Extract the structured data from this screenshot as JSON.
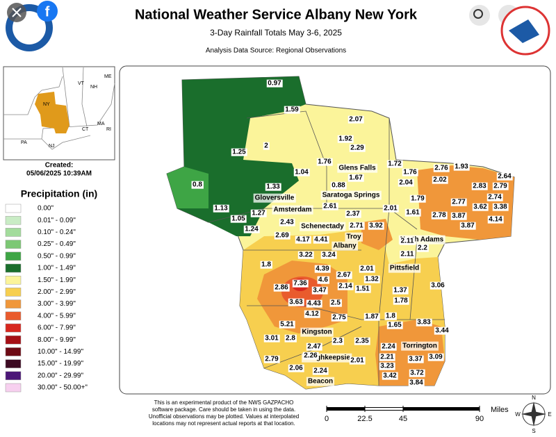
{
  "header": {
    "title": "National Weather Service Albany New York",
    "subtitle": "3-Day Rainfall Totals May 3-6, 2025",
    "source": "Analysis Data Source: Regional Observations"
  },
  "inset": {
    "labels": [
      "VT",
      "NH",
      "ME",
      "NY",
      "MA",
      "CT",
      "RI",
      "PA",
      "NJ"
    ]
  },
  "created": {
    "label": "Created:",
    "date": "05/06/2025 10:39AM"
  },
  "legend": {
    "title": "Precipitation (in)",
    "items": [
      {
        "label": "0.00\"",
        "color": "#ffffff"
      },
      {
        "label": "0.01\" - 0.09\"",
        "color": "#c9ecc5"
      },
      {
        "label": "0.10\" - 0.24\"",
        "color": "#a3dc9c"
      },
      {
        "label": "0.25\" - 0.49\"",
        "color": "#7cc874"
      },
      {
        "label": "0.50\" - 0.99\"",
        "color": "#3ea545"
      },
      {
        "label": "1.00\" - 1.49\"",
        "color": "#1a6e2c"
      },
      {
        "label": "1.50\" - 1.99\"",
        "color": "#fbf49a"
      },
      {
        "label": "2.00\" - 2.99\"",
        "color": "#f7cf4f"
      },
      {
        "label": "3.00\" - 3.99\"",
        "color": "#f0973a"
      },
      {
        "label": "4.00\" - 5.99\"",
        "color": "#e95b2d"
      },
      {
        "label": "6.00\" - 7.99\"",
        "color": "#d7261e"
      },
      {
        "label": "8.00\" - 9.99\"",
        "color": "#a50f15"
      },
      {
        "label": "10.00\" - 14.99\"",
        "color": "#6d0a14"
      },
      {
        "label": "15.00\" - 19.99\"",
        "color": "#3d0a22"
      },
      {
        "label": "20.00\" - 29.99\"",
        "color": "#4b1677"
      },
      {
        "label": "30.00\" - 50.00+\"",
        "color": "#f7d0ef"
      }
    ]
  },
  "cities": [
    "Glens Falls",
    "Saratoga Springs",
    "Gloversville",
    "Amsterdam",
    "Schenectady",
    "Troy",
    "Albany",
    "North Adams",
    "Pittsfield",
    "Kingston",
    "Poughkeepsie",
    "Torrington",
    "Beacon"
  ],
  "observations": [
    0.97,
    1.59,
    2.07,
    1.92,
    2.29,
    2,
    1.25,
    1.76,
    1.72,
    1.76,
    2.76,
    1.93,
    2.64,
    1.04,
    1.67,
    2.04,
    2.02,
    2.83,
    2.79,
    0.8,
    1.33,
    0.88,
    2.74,
    1.79,
    2.77,
    3.38,
    1.13,
    2.61,
    3.62,
    1.27,
    2.37,
    2.01,
    1.61,
    2.78,
    3.87,
    4.14,
    1.05,
    2.43,
    3.92,
    2.71,
    3.87,
    1.24,
    2.69,
    4.17,
    4.41,
    2.11,
    2.2,
    3.22,
    3.24,
    2.11,
    1.8,
    4.39,
    2.01,
    2.67,
    1.32,
    4.6,
    2.86,
    7.36,
    3.47,
    2.14,
    1.51,
    1.37,
    3.06,
    3.63,
    4.43,
    2.5,
    1.78,
    4.12,
    2.75,
    1.87,
    1.8,
    3.83,
    5.21,
    1.65,
    3.44,
    3.01,
    2.8,
    2.3,
    2.35,
    2.47,
    2.26,
    2.24,
    2.79,
    2.21,
    3.37,
    3.09,
    2.01,
    2.06,
    2.24,
    3.23,
    3.72,
    3.42,
    3.84
  ],
  "footer": [
    "This is an experimental product of the NWS GAZPACHO",
    "software package. Care should be taken in using the data.",
    "Unofficial observations may be plotted. Values at interpolated",
    "locations may not represent actual reports at that location."
  ],
  "scale": {
    "unit": "Miles",
    "ticks": [
      0,
      22.5,
      45,
      90
    ]
  },
  "compass": [
    "N",
    "E",
    "S",
    "W"
  ]
}
